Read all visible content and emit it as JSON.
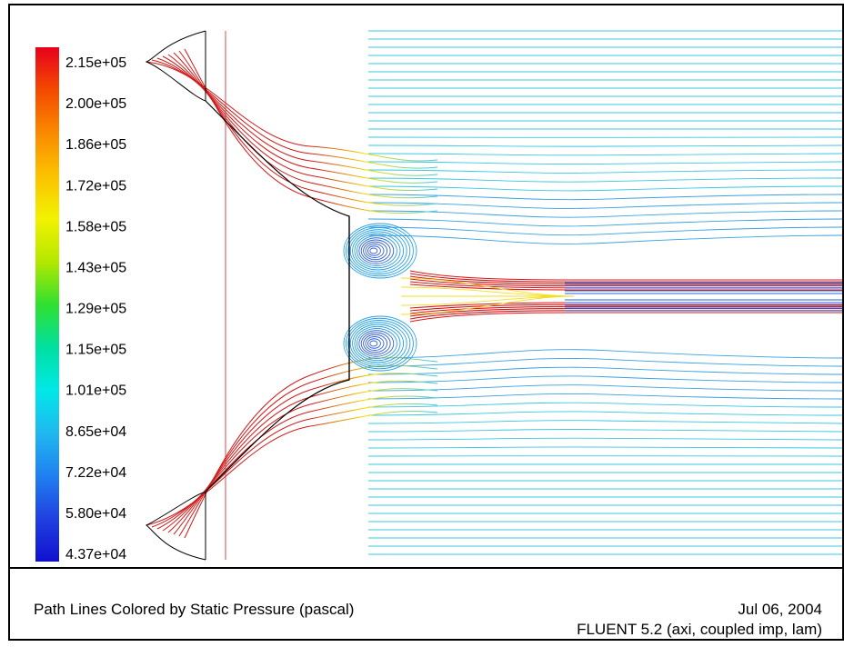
{
  "colorbar": {
    "labels": [
      "2.15e+05",
      "2.00e+05",
      "1.86e+05",
      "1.72e+05",
      "1.58e+05",
      "1.43e+05",
      "1.29e+05",
      "1.15e+05",
      "1.01e+05",
      "8.65e+04",
      "7.22e+04",
      "5.80e+04",
      "4.37e+04"
    ],
    "max_value": 215000,
    "min_value": 43700,
    "colors": [
      "#e8001c",
      "#f44a00",
      "#f98a00",
      "#fcc200",
      "#f2f200",
      "#b5e800",
      "#30e030",
      "#00e0a0",
      "#00e8e8",
      "#20b8f0",
      "#2080f0",
      "#2040e0",
      "#1010d0"
    ]
  },
  "caption": {
    "title": "Path Lines Colored by Static Pressure (pascal)",
    "date": "Jul 06, 2004",
    "version": "FLUENT 5.2 (axi, coupled imp, lam)"
  }
}
